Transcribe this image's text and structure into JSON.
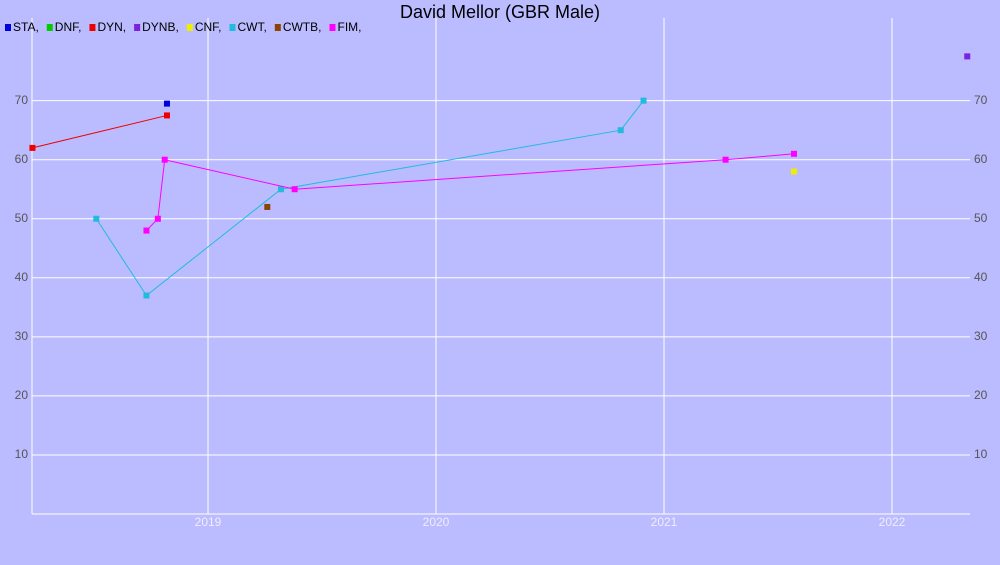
{
  "chart_data": {
    "type": "line",
    "title": "David Mellor (GBR Male)",
    "xlim": [
      2018.228,
      2022.342
    ],
    "xticks": [
      2019,
      2020,
      2021,
      2022
    ],
    "ylim": [
      0,
      84
    ],
    "yticks": [
      10,
      20,
      30,
      40,
      50,
      60,
      70
    ],
    "grid": true,
    "series": [
      {
        "name": "STA,",
        "color": "#0000dd",
        "x": [
          2018.82
        ],
        "values": [
          69.5
        ]
      },
      {
        "name": "DNF,",
        "color": "#00cc00",
        "x": [],
        "values": []
      },
      {
        "name": "DYN,",
        "color": "#ee0000",
        "x": [
          2018.23,
          2018.82
        ],
        "values": [
          62,
          67.5
        ]
      },
      {
        "name": "DYNB,",
        "color": "#7a22dd",
        "x": [
          2022.33
        ],
        "values": [
          77.5
        ]
      },
      {
        "name": "CNF,",
        "color": "#eeee00",
        "x": [
          2021.57
        ],
        "values": [
          58
        ]
      },
      {
        "name": "CWT,",
        "color": "#22bbdd",
        "x": [
          2018.51,
          2018.73,
          2019.32,
          2020.81,
          2020.91
        ],
        "values": [
          50,
          37,
          55,
          65,
          70
        ]
      },
      {
        "name": "CWTB,",
        "color": "#884400",
        "x": [
          2019.26
        ],
        "values": [
          52
        ]
      },
      {
        "name": "FIM,",
        "color": "#ff00ff",
        "x": [
          2018.73,
          2018.78,
          2018.81,
          2019.38,
          2021.27,
          2021.57
        ],
        "values": [
          48,
          50,
          60,
          55,
          60,
          61
        ]
      }
    ]
  }
}
